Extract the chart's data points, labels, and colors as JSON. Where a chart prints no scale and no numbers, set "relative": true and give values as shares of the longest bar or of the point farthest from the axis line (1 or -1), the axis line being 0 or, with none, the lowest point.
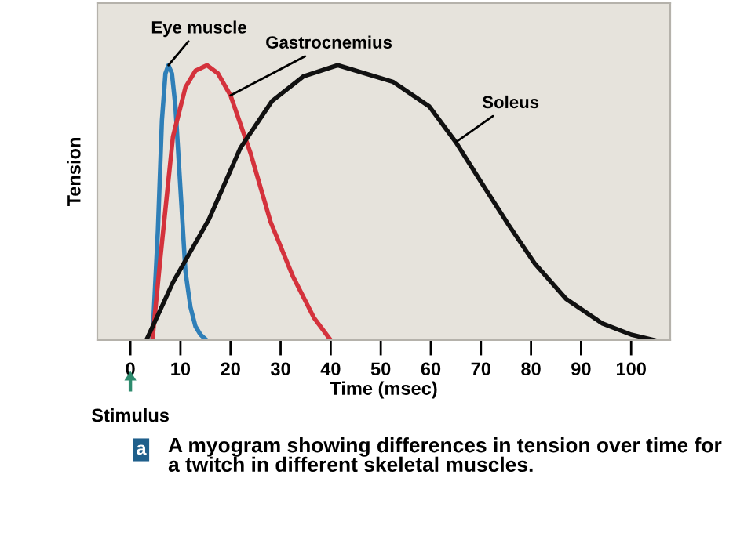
{
  "chart_data": {
    "type": "line",
    "relative": true,
    "xlabel": "Time (msec)",
    "ylabel": "Tension",
    "xlim": [
      -6.6,
      107.8
    ],
    "xticks": [
      0,
      10,
      20,
      30,
      40,
      50,
      60,
      70,
      80,
      90,
      100
    ],
    "grid": false,
    "legend": false,
    "marker": "none",
    "line_style": "solid",
    "series": [
      {
        "name": "Eye muscle",
        "color": "#2f7fb8",
        "x": [
          4.4,
          5.5,
          6.3,
          7.0,
          7.6,
          8.3,
          9.0,
          10.0,
          11.0,
          12.0,
          13.0,
          14.0,
          15.2
        ],
        "values": [
          0,
          0.4,
          0.8,
          0.97,
          1,
          0.97,
          0.85,
          0.55,
          0.25,
          0.12,
          0.05,
          0.02,
          0
        ]
      },
      {
        "name": "Gastrocnemius",
        "color": "#d4323c",
        "x": [
          4.4,
          6.0,
          8.5,
          11.0,
          13.0,
          15.3,
          17.5,
          20.0,
          24.0,
          28.0,
          32.5,
          36.7,
          40.0
        ],
        "values": [
          0,
          0.3,
          0.74,
          0.92,
          0.98,
          1,
          0.97,
          0.89,
          0.68,
          0.43,
          0.23,
          0.08,
          0
        ]
      },
      {
        "name": "Soleus",
        "color": "#111111",
        "x": [
          3.2,
          8.5,
          15.7,
          22.0,
          28.3,
          34.6,
          41.4,
          52.4,
          59.7,
          65.0,
          70.2,
          75.5,
          80.7,
          87.0,
          94.3,
          100.0,
          104.6
        ],
        "values": [
          0,
          0.21,
          0.44,
          0.7,
          0.87,
          0.96,
          1,
          0.94,
          0.85,
          0.72,
          0.57,
          0.42,
          0.28,
          0.15,
          0.06,
          0.02,
          0
        ]
      }
    ],
    "annotations": [
      "Stimulus",
      "a",
      "A myogram showing differences in tension over time for a twitch in different skeletal muscles."
    ]
  }
}
